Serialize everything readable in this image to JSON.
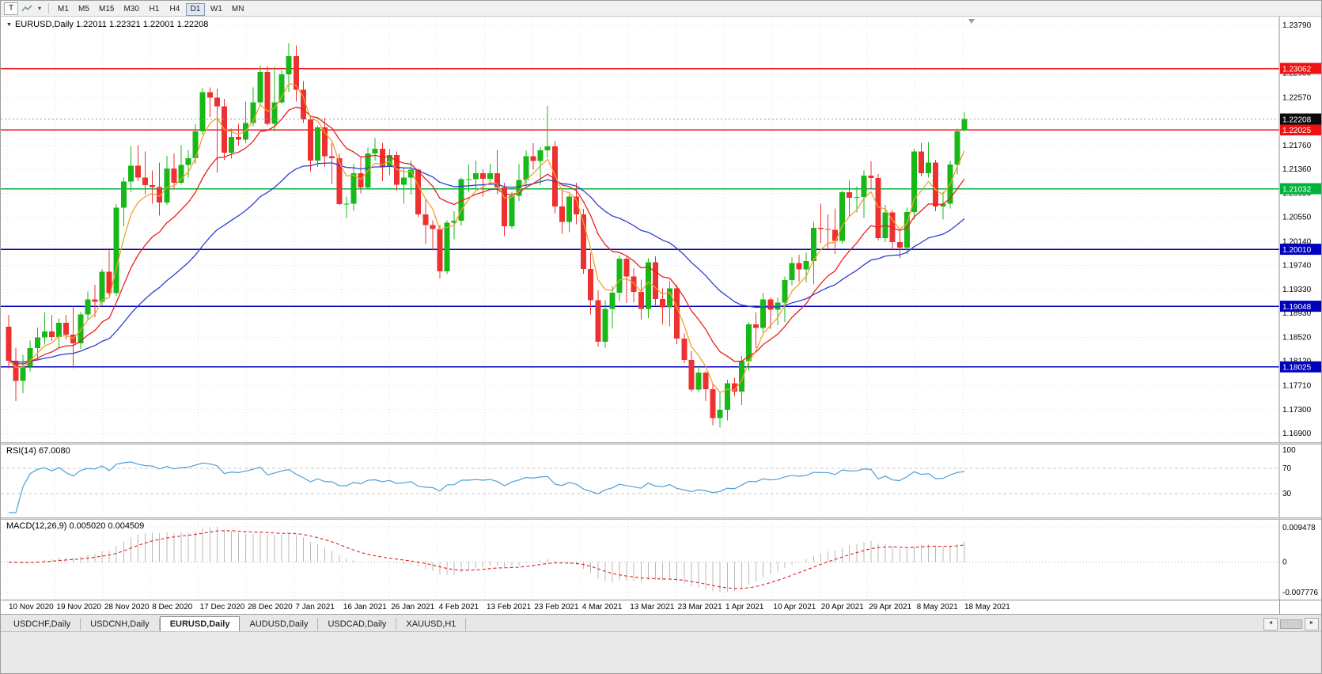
{
  "toolbar": {
    "t_label": "T",
    "timeframes": [
      "M1",
      "M5",
      "M15",
      "M30",
      "H1",
      "H4",
      "D1",
      "W1",
      "MN"
    ],
    "active_timeframe": "D1"
  },
  "icons": {
    "symbol_marker": "▼",
    "dropdown_caret": "▾",
    "scroll_left": "◄",
    "scroll_right": "►"
  },
  "chart": {
    "title": "EURUSD,Daily  1.22011 1.22321 1.22001 1.22208"
  },
  "panels": {
    "rsi": {
      "label": "RSI(14) 67.0080",
      "axis_labels": [
        "100",
        "70",
        "30"
      ]
    },
    "macd": {
      "label": "MACD(12,26,9) 0.005020 0.004509",
      "axis_labels": [
        "0.009478",
        "0",
        "-0.007776"
      ]
    }
  },
  "tabs": [
    {
      "label": "USDCHF,Daily",
      "active": false
    },
    {
      "label": "USDCNH,Daily",
      "active": false
    },
    {
      "label": "EURUSD,Daily",
      "active": true
    },
    {
      "label": "AUDUSD,Daily",
      "active": false
    },
    {
      "label": "USDCAD,Daily",
      "active": false
    },
    {
      "label": "XAUUSD,H1",
      "active": false
    }
  ],
  "chart_data": {
    "type": "candlestick",
    "symbol": "EURUSD",
    "timeframe": "Daily",
    "ohlc_current": {
      "open": 1.22011,
      "high": 1.22321,
      "low": 1.22001,
      "close": 1.22208
    },
    "current_price": {
      "value": 1.22208,
      "label": "1.22208"
    },
    "y_axis": {
      "max": 1.2379,
      "min": 1.169,
      "tick_labels": [
        "1.23790",
        "1.22980",
        "1.22570",
        "1.21760",
        "1.21360",
        "1.20950",
        "1.20550",
        "1.20140",
        "1.19740",
        "1.19330",
        "1.18930",
        "1.18520",
        "1.18120",
        "1.17710",
        "1.17300",
        "1.16900"
      ]
    },
    "x_labels": [
      "10 Nov 2020",
      "19 Nov 2020",
      "28 Nov 2020",
      "8 Dec 2020",
      "17 Dec 2020",
      "28 Dec 2020",
      "7 Jan 2021",
      "16 Jan 2021",
      "26 Jan 2021",
      "4 Feb 2021",
      "13 Feb 2021",
      "23 Feb 2021",
      "4 Mar 2021",
      "13 Mar 2021",
      "23 Mar 2021",
      "1 Apr 2021",
      "10 Apr 2021",
      "20 Apr 2021",
      "29 Apr 2021",
      "8 May 2021",
      "18 May 2021"
    ],
    "h_lines": [
      {
        "price": 1.23062,
        "label": "1.23062",
        "color": "#ee1212"
      },
      {
        "price": 1.22025,
        "label": "1.22025",
        "color": "#ee1212"
      },
      {
        "price": 1.21032,
        "label": "1.21032",
        "color": "#00b33c"
      },
      {
        "price": 1.2001,
        "label": "1.20010",
        "color": "#0000bb"
      },
      {
        "price": 1.19048,
        "label": "1.19048",
        "color": "#0000bb"
      },
      {
        "price": 1.18025,
        "label": "1.18025",
        "color": "#0000bb"
      }
    ],
    "colors": {
      "bull": "#17b817",
      "bear": "#ef3030",
      "grid": "#e2e2e2",
      "axis_text": "#000000",
      "current_box": "#0a0a0a"
    },
    "indicators": {
      "moving_averages": [
        {
          "type": "ema",
          "period": 34,
          "color": "#2e3fd0"
        },
        {
          "type": "ema",
          "period": 13,
          "color": "#ea2020"
        },
        {
          "type": "ema",
          "period": 5,
          "color": "#f0a030"
        }
      ],
      "rsi": {
        "period": 14,
        "value": "67.0080",
        "color": "#4f9fd8",
        "levels": [
          70,
          30
        ]
      },
      "macd": {
        "fast": 12,
        "slow": 26,
        "signal": 9,
        "value": "0.005020",
        "signal_value": "0.004509",
        "histogram_color": "#b9b9b9",
        "signal_color": "#e02020"
      }
    },
    "candles": [
      [
        1.187,
        1.189,
        1.18,
        1.1813
      ],
      [
        1.1813,
        1.1835,
        1.1745,
        1.1779
      ],
      [
        1.1779,
        1.1823,
        1.1758,
        1.1803
      ],
      [
        1.1803,
        1.1847,
        1.1795,
        1.1834
      ],
      [
        1.1834,
        1.1869,
        1.1815,
        1.1852
      ],
      [
        1.1852,
        1.1894,
        1.184,
        1.1862
      ],
      [
        1.1862,
        1.189,
        1.1846,
        1.1853
      ],
      [
        1.1853,
        1.1884,
        1.1835,
        1.1877
      ],
      [
        1.1877,
        1.189,
        1.1849,
        1.1857
      ],
      [
        1.1857,
        1.1905,
        1.18,
        1.1842
      ],
      [
        1.1842,
        1.1895,
        1.1833,
        1.1891
      ],
      [
        1.1891,
        1.193,
        1.1881,
        1.1916
      ],
      [
        1.1916,
        1.1941,
        1.1886,
        1.1912
      ],
      [
        1.1912,
        1.1968,
        1.1905,
        1.1963
      ],
      [
        1.1963,
        1.2003,
        1.1923,
        1.1927
      ],
      [
        1.1927,
        1.2077,
        1.1922,
        1.2071
      ],
      [
        1.2071,
        1.2122,
        1.204,
        1.2115
      ],
      [
        1.2115,
        1.2175,
        1.2098,
        1.2142
      ],
      [
        1.2142,
        1.2177,
        1.2116,
        1.2122
      ],
      [
        1.2122,
        1.2166,
        1.2094,
        1.2109
      ],
      [
        1.2109,
        1.2134,
        1.2078,
        1.2106
      ],
      [
        1.2106,
        1.2147,
        1.2058,
        1.208
      ],
      [
        1.208,
        1.2159,
        1.2076,
        1.2137
      ],
      [
        1.2137,
        1.2163,
        1.2102,
        1.2113
      ],
      [
        1.2113,
        1.2177,
        1.211,
        1.2143
      ],
      [
        1.2143,
        1.2169,
        1.2122,
        1.2155
      ],
      [
        1.2155,
        1.2212,
        1.2145,
        1.22
      ],
      [
        1.22,
        1.2273,
        1.2195,
        1.2266
      ],
      [
        1.2266,
        1.2274,
        1.2224,
        1.2257
      ],
      [
        1.2257,
        1.2272,
        1.213,
        1.2242
      ],
      [
        1.2242,
        1.2255,
        1.2152,
        1.2164
      ],
      [
        1.2164,
        1.2205,
        1.2154,
        1.2191
      ],
      [
        1.2191,
        1.2213,
        1.2176,
        1.2186
      ],
      [
        1.2186,
        1.225,
        1.2181,
        1.2214
      ],
      [
        1.2214,
        1.2274,
        1.2208,
        1.2249
      ],
      [
        1.2249,
        1.2311,
        1.2244,
        1.23
      ],
      [
        1.23,
        1.231,
        1.221,
        1.2213
      ],
      [
        1.2213,
        1.2309,
        1.22,
        1.2249
      ],
      [
        1.2249,
        1.2303,
        1.2247,
        1.2296
      ],
      [
        1.2296,
        1.2349,
        1.2266,
        1.2327
      ],
      [
        1.2327,
        1.2345,
        1.225,
        1.227
      ],
      [
        1.227,
        1.2285,
        1.2214,
        1.222
      ],
      [
        1.222,
        1.2227,
        1.2132,
        1.2151
      ],
      [
        1.2151,
        1.221,
        1.214,
        1.2207
      ],
      [
        1.2207,
        1.2223,
        1.214,
        1.2158
      ],
      [
        1.2158,
        1.218,
        1.2111,
        1.2155
      ],
      [
        1.2155,
        1.2163,
        1.2075,
        1.2077
      ],
      [
        1.2077,
        1.209,
        1.2054,
        1.2078
      ],
      [
        1.2078,
        1.2145,
        1.2066,
        1.2129
      ],
      [
        1.2129,
        1.2158,
        1.2095,
        1.2105
      ],
      [
        1.2105,
        1.2173,
        1.2103,
        1.2163
      ],
      [
        1.2163,
        1.2189,
        1.2151,
        1.2171
      ],
      [
        1.2171,
        1.2181,
        1.2116,
        1.214
      ],
      [
        1.214,
        1.217,
        1.2126,
        1.216
      ],
      [
        1.216,
        1.2166,
        1.21,
        1.211
      ],
      [
        1.211,
        1.2139,
        1.2078,
        1.2122
      ],
      [
        1.2122,
        1.2151,
        1.2093,
        1.2135
      ],
      [
        1.2135,
        1.2137,
        1.2055,
        1.206
      ],
      [
        1.206,
        1.2087,
        1.201,
        1.2042
      ],
      [
        1.2042,
        1.205,
        1.1999,
        1.2035
      ],
      [
        1.2035,
        1.2042,
        1.1952,
        1.1964
      ],
      [
        1.1964,
        1.205,
        1.1959,
        1.2046
      ],
      [
        1.2046,
        1.2065,
        1.2018,
        1.2049
      ],
      [
        1.2049,
        1.2122,
        1.2041,
        1.2119
      ],
      [
        1.2119,
        1.2144,
        1.2097,
        1.2119
      ],
      [
        1.2119,
        1.2151,
        1.2104,
        1.2129
      ],
      [
        1.2129,
        1.2136,
        1.209,
        1.212
      ],
      [
        1.212,
        1.2145,
        1.211,
        1.2129
      ],
      [
        1.2129,
        1.2169,
        1.2094,
        1.2105
      ],
      [
        1.2105,
        1.2113,
        1.2023,
        1.204
      ],
      [
        1.204,
        1.2098,
        1.2036,
        1.2091
      ],
      [
        1.2091,
        1.2145,
        1.2082,
        1.2118
      ],
      [
        1.2118,
        1.2168,
        1.2107,
        1.2158
      ],
      [
        1.2158,
        1.218,
        1.2135,
        1.215
      ],
      [
        1.215,
        1.2174,
        1.2109,
        1.2168
      ],
      [
        1.2168,
        1.2243,
        1.2156,
        1.2175
      ],
      [
        1.2175,
        1.2184,
        1.2061,
        1.2073
      ],
      [
        1.2073,
        1.2101,
        1.2027,
        1.2047
      ],
      [
        1.2047,
        1.2094,
        1.203,
        1.209
      ],
      [
        1.209,
        1.2113,
        1.2043,
        1.206
      ],
      [
        1.206,
        1.2069,
        1.196,
        1.1968
      ],
      [
        1.1968,
        1.1995,
        1.1891,
        1.1915
      ],
      [
        1.1915,
        1.1932,
        1.1836,
        1.1845
      ],
      [
        1.1845,
        1.1915,
        1.1835,
        1.19
      ],
      [
        1.19,
        1.1939,
        1.1867,
        1.1928
      ],
      [
        1.1928,
        1.199,
        1.1913,
        1.1985
      ],
      [
        1.1985,
        1.199,
        1.191,
        1.1955
      ],
      [
        1.1955,
        1.1969,
        1.1911,
        1.1929
      ],
      [
        1.1929,
        1.195,
        1.1882,
        1.19
      ],
      [
        1.19,
        1.1986,
        1.1885,
        1.1979
      ],
      [
        1.1979,
        1.1989,
        1.1906,
        1.1917
      ],
      [
        1.1917,
        1.1935,
        1.1874,
        1.1903
      ],
      [
        1.1903,
        1.1947,
        1.1871,
        1.1935
      ],
      [
        1.1935,
        1.1941,
        1.1841,
        1.185
      ],
      [
        1.185,
        1.1859,
        1.1809,
        1.1814
      ],
      [
        1.1814,
        1.1829,
        1.176,
        1.1764
      ],
      [
        1.1764,
        1.1805,
        1.1761,
        1.1793
      ],
      [
        1.1793,
        1.1795,
        1.1745,
        1.1765
      ],
      [
        1.1765,
        1.1774,
        1.1704,
        1.1716
      ],
      [
        1.1716,
        1.1761,
        1.17,
        1.173
      ],
      [
        1.173,
        1.1781,
        1.1712,
        1.1775
      ],
      [
        1.1775,
        1.1784,
        1.1753,
        1.1761
      ],
      [
        1.1761,
        1.1821,
        1.1738,
        1.1812
      ],
      [
        1.1812,
        1.1878,
        1.1796,
        1.1874
      ],
      [
        1.1874,
        1.1894,
        1.1834,
        1.1868
      ],
      [
        1.1868,
        1.1928,
        1.1861,
        1.1916
      ],
      [
        1.1916,
        1.192,
        1.1866,
        1.1899
      ],
      [
        1.1899,
        1.192,
        1.1873,
        1.1911
      ],
      [
        1.1911,
        1.1955,
        1.1878,
        1.1949
      ],
      [
        1.1949,
        1.1987,
        1.194,
        1.1978
      ],
      [
        1.1978,
        1.1992,
        1.1946,
        1.1967
      ],
      [
        1.1967,
        1.1995,
        1.1945,
        1.1981
      ],
      [
        1.1981,
        1.2047,
        1.1942,
        1.2037
      ],
      [
        1.2037,
        1.2078,
        1.2012,
        1.2035
      ],
      [
        1.2035,
        1.206,
        1.2001,
        1.2034
      ],
      [
        1.2034,
        1.207,
        1.1993,
        1.2015
      ],
      [
        1.2015,
        1.21,
        1.2011,
        1.2097
      ],
      [
        1.2097,
        1.2117,
        1.2057,
        1.2088
      ],
      [
        1.2088,
        1.2107,
        1.2063,
        1.2089
      ],
      [
        1.2089,
        1.2134,
        1.2054,
        1.2125
      ],
      [
        1.2125,
        1.215,
        1.2102,
        1.2121
      ],
      [
        1.2121,
        1.2128,
        1.2016,
        1.202
      ],
      [
        1.202,
        1.2076,
        1.2013,
        1.2063
      ],
      [
        1.2063,
        1.2067,
        1.1999,
        1.2013
      ],
      [
        1.2013,
        1.2032,
        1.1986,
        1.2004
      ],
      [
        1.2004,
        1.2071,
        1.1993,
        1.2064
      ],
      [
        1.2064,
        1.2171,
        1.2051,
        1.2166
      ],
      [
        1.2166,
        1.2181,
        1.2124,
        1.2129
      ],
      [
        1.2129,
        1.2182,
        1.2122,
        1.2147
      ],
      [
        1.2147,
        1.2152,
        1.2065,
        1.2073
      ],
      [
        1.2073,
        1.2098,
        1.2051,
        1.2078
      ],
      [
        1.2078,
        1.215,
        1.207,
        1.2144
      ],
      [
        1.2144,
        1.2205,
        1.2127,
        1.22
      ],
      [
        1.22011,
        1.22321,
        1.22001,
        1.22208
      ]
    ]
  }
}
